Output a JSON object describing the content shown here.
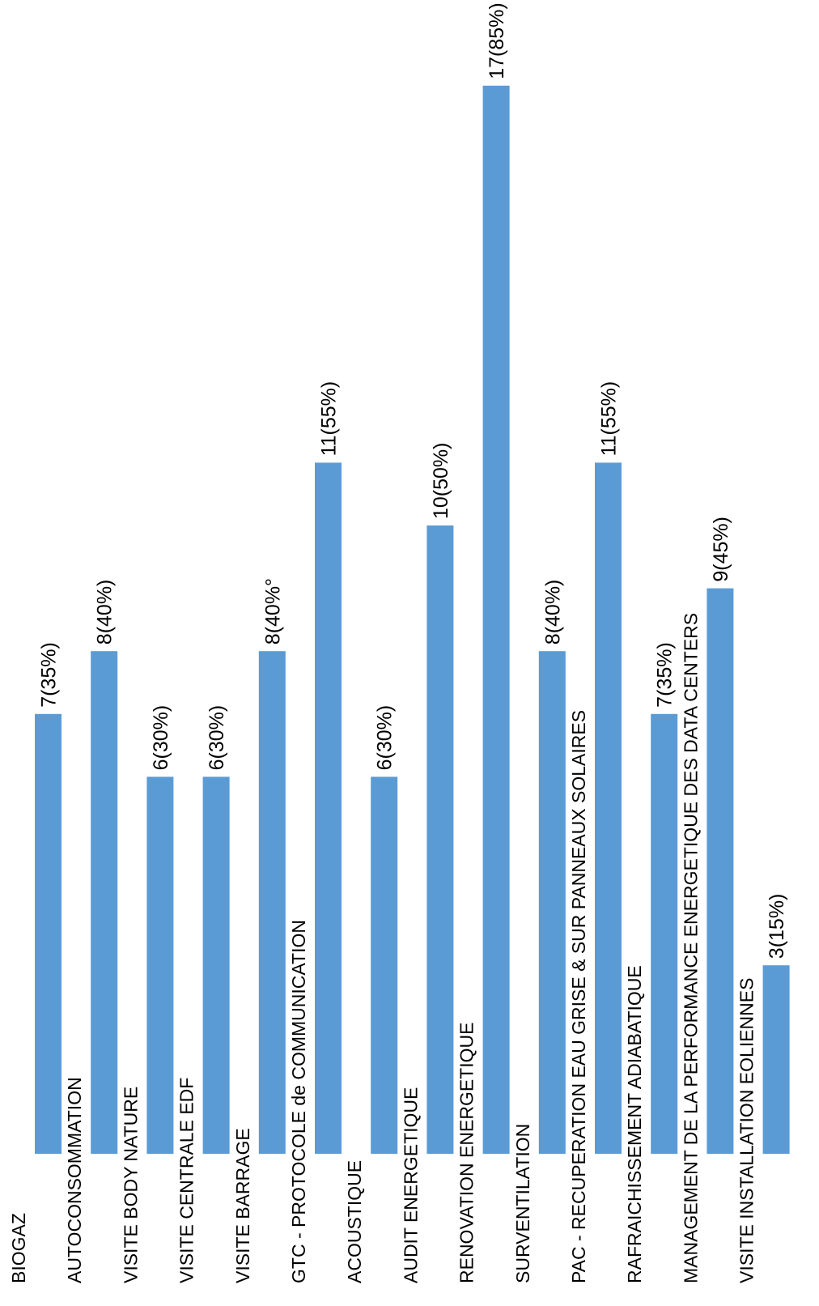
{
  "chart_data": {
    "type": "bar",
    "orientation": "vertical",
    "categories": [
      "BIOGAZ",
      "AUTOCONSOMMATION",
      "VISITE BODY NATURE",
      "VISITE CENTRALE EDF",
      "VISITE BARRAGE",
      "GTC - PROTOCOLE de COMMUNICATION",
      "ACOUSTIQUE",
      "AUDIT ENERGETIQUE",
      "RENOVATION ENERGETIQUE",
      "SURVENTILATION",
      "PAC - RECUPERATION EAU GRISE & SUR PANNEAUX SOLAIRES",
      "RAFRAICHISSEMENT ADIABATIQUE",
      "MANAGEMENT DE LA PERFORMANCE ENERGETIQUE DES DATA CENTERS",
      "VISITE INSTALLATION EOLIENNES"
    ],
    "values": [
      7,
      8,
      6,
      6,
      8,
      11,
      6,
      10,
      17,
      8,
      11,
      7,
      9,
      3
    ],
    "data_labels": [
      "7(35%)",
      "8(40%)",
      "6(30%)",
      "6(30%)",
      "8(40%°",
      "11(55%)",
      "6(30%)",
      "10(50%)",
      "17(85%)",
      "8(40%)",
      "11(55%)",
      "7(35%)",
      "9(45%)",
      "3(15%)"
    ],
    "bar_color": "#5B9BD5",
    "ylim": [
      0,
      17
    ],
    "grid": false,
    "legend": "none",
    "title": "",
    "xlabel": "",
    "ylabel": ""
  }
}
